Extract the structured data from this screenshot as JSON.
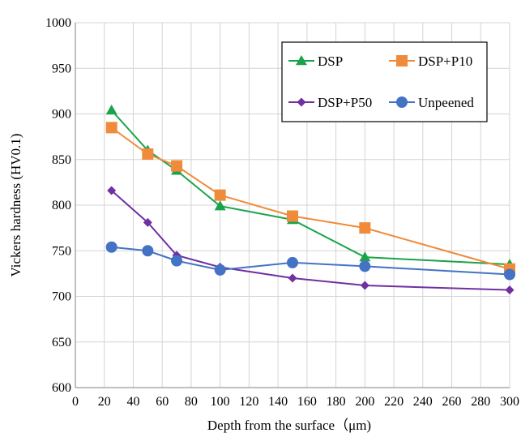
{
  "chart_data": {
    "type": "line",
    "xlabel": "Depth from the surface（μm)",
    "ylabel": "Vickers hardness  (HV0.1)",
    "xlim": [
      0,
      300
    ],
    "ylim": [
      600,
      1000
    ],
    "x_ticks": [
      0,
      20,
      40,
      60,
      80,
      100,
      120,
      140,
      160,
      180,
      200,
      220,
      240,
      260,
      280,
      300
    ],
    "y_ticks": [
      600,
      650,
      700,
      750,
      800,
      850,
      900,
      950,
      1000
    ],
    "x_tick_labels": [
      "0",
      "20",
      "40",
      "60",
      "80",
      "100",
      "120",
      "140",
      "160",
      "180",
      "200",
      "220",
      "240",
      "260",
      "280",
      "300"
    ],
    "y_tick_labels": [
      "600",
      "650",
      "700",
      "750",
      "800",
      "850",
      "900",
      "950",
      "1000"
    ],
    "grid": "vertical and horizontal",
    "legend_position": "top-right",
    "series": [
      {
        "name": "DSP",
        "color": "#1aa34a",
        "marker": "triangle",
        "x": [
          25,
          50,
          70,
          100,
          150,
          200,
          300
        ],
        "y": [
          904,
          860,
          838,
          799,
          784,
          743,
          735
        ]
      },
      {
        "name": "DSP+P10",
        "color": "#ef8b3a",
        "marker": "square",
        "x": [
          25,
          50,
          70,
          100,
          150,
          200,
          300
        ],
        "y": [
          885,
          856,
          843,
          811,
          788,
          775,
          730
        ]
      },
      {
        "name": "DSP+P50",
        "color": "#7030a0",
        "marker": "diamond",
        "x": [
          25,
          50,
          70,
          100,
          150,
          200,
          300
        ],
        "y": [
          816,
          781,
          745,
          732,
          720,
          712,
          707
        ]
      },
      {
        "name": "Unpeened",
        "color": "#4472c4",
        "marker": "circle",
        "x": [
          25,
          50,
          70,
          100,
          150,
          200,
          300
        ],
        "y": [
          754,
          750,
          739,
          729,
          737,
          733,
          724
        ]
      }
    ]
  }
}
